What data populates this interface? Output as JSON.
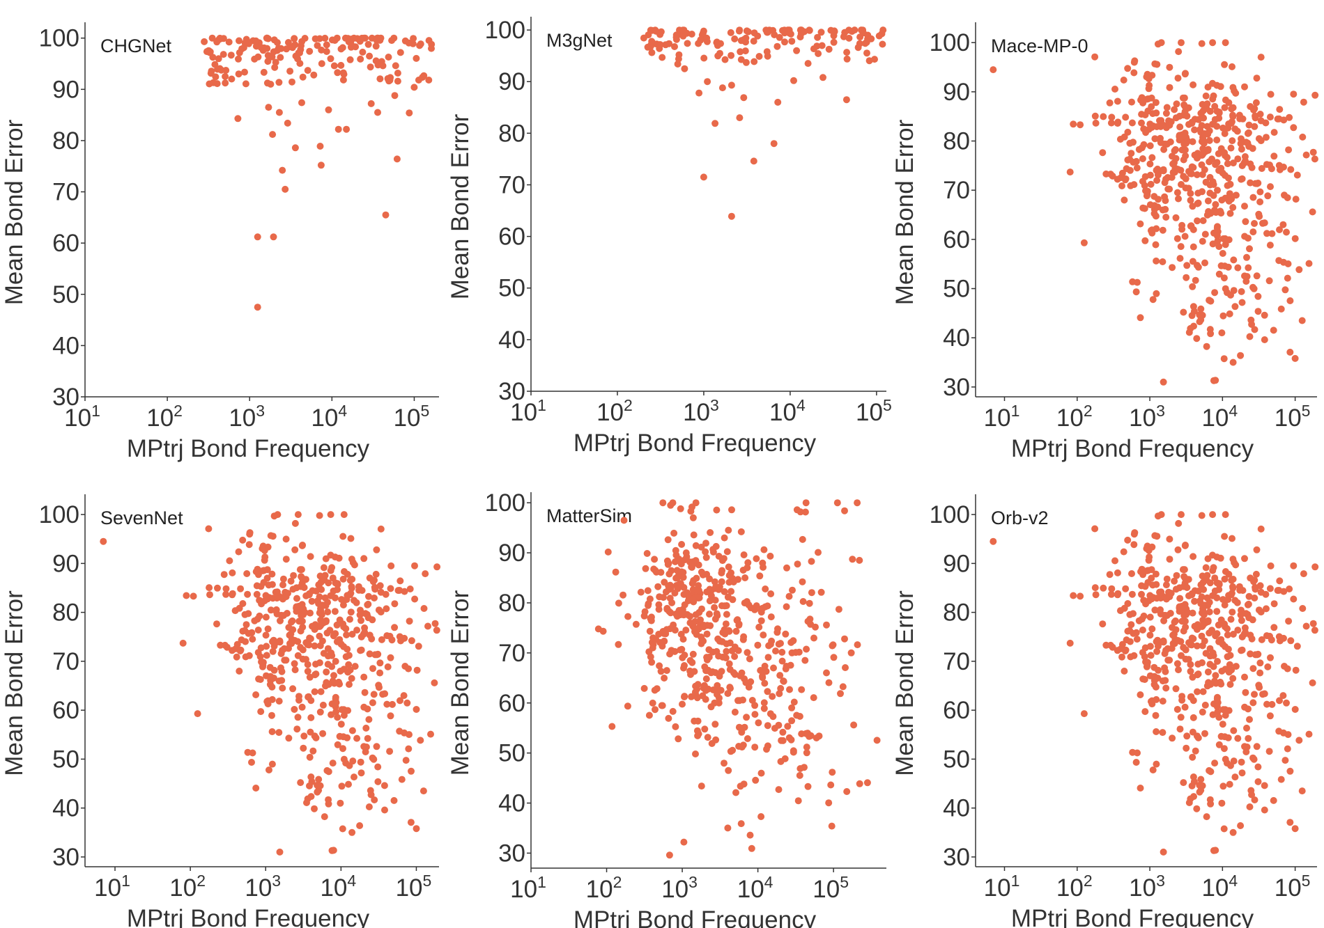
{
  "figure": {
    "point_color": "#e8694a",
    "xlabel": "MPtrj Bond Frequency",
    "ylabel": "Mean Bond Error"
  },
  "chart_data": [
    {
      "type": "scatter",
      "title": "CHGNet",
      "xlabel": "MPtrj Bond Frequency",
      "ylabel": "Mean Bond Error",
      "xscale": "log",
      "xlim": [
        10,
        200000
      ],
      "ylim": [
        30,
        102
      ],
      "yticks": [
        30,
        40,
        50,
        60,
        70,
        80,
        90,
        100
      ],
      "xtick_exponents": [
        1,
        2,
        3,
        4,
        5
      ],
      "grid": false,
      "seed": 11,
      "points": [
        [
          1250,
          61.2
        ],
        [
          1950,
          61.2
        ],
        [
          1250,
          47.5
        ],
        [
          45000,
          65.5
        ],
        [
          2700,
          70.5
        ],
        [
          2500,
          74.2
        ],
        [
          62000,
          76.4
        ],
        [
          3600,
          78.6
        ],
        [
          7200,
          78.9
        ],
        [
          7400,
          75.2
        ],
        [
          720,
          84.3
        ],
        [
          2900,
          83.4
        ],
        [
          1900,
          81.2
        ],
        [
          1700,
          86.5
        ],
        [
          2300,
          85.5
        ],
        [
          4300,
          87.4
        ],
        [
          30000,
          87.2
        ],
        [
          36000,
          85.5
        ],
        [
          58000,
          88.8
        ],
        [
          100000,
          90.4
        ],
        [
          87000,
          85.4
        ],
        [
          12000,
          82.2
        ],
        [
          15000,
          82.2
        ],
        [
          9100,
          86.0
        ],
        [
          1800,
          91.0
        ]
      ],
      "cluster": {
        "n": 170,
        "xmin": 280,
        "xmax": 170000,
        "ymin": 91,
        "ymax": 100,
        "skew": 0.45
      }
    },
    {
      "type": "scatter",
      "title": "M3gNet",
      "xlabel": "MPtrj Bond Frequency",
      "ylabel": "Mean Bond Error",
      "xscale": "log",
      "xlim": [
        10,
        130000
      ],
      "ylim": [
        30,
        101.5
      ],
      "yticks": [
        30,
        40,
        50,
        60,
        70,
        80,
        90,
        100
      ],
      "xtick_exponents": [
        1,
        2,
        3,
        4,
        5
      ],
      "grid": false,
      "seed": 23,
      "points": [
        [
          2100,
          63.9
        ],
        [
          1000,
          71.5
        ],
        [
          3800,
          74.6
        ],
        [
          6500,
          78.0
        ],
        [
          1350,
          81.9
        ],
        [
          2600,
          83.0
        ],
        [
          7200,
          86.0
        ],
        [
          45000,
          86.5
        ],
        [
          2900,
          86.9
        ],
        [
          880,
          87.8
        ],
        [
          1650,
          88.8
        ],
        [
          1100,
          90.0
        ],
        [
          11000,
          90.2
        ],
        [
          24000,
          90.8
        ],
        [
          2100,
          89.3
        ],
        [
          500,
          93.4
        ],
        [
          600,
          92.5
        ],
        [
          3100,
          93.7
        ]
      ],
      "cluster": {
        "n": 140,
        "xmin": 190,
        "xmax": 120000,
        "ymin": 93.5,
        "ymax": 100,
        "skew": 0.35
      }
    },
    {
      "type": "scatter",
      "title": "Mace-MP-0",
      "xlabel": "MPtrj Bond Frequency",
      "ylabel": "Mean Bond Error",
      "xscale": "log",
      "xlim": [
        4,
        200000
      ],
      "ylim": [
        28,
        103
      ],
      "yticks": [
        30,
        40,
        50,
        60,
        70,
        80,
        90,
        100
      ],
      "xtick_exponents": [
        1,
        2,
        3,
        4,
        5
      ],
      "grid": false,
      "seed": 37,
      "points": [
        [
          7,
          94.5
        ],
        [
          80,
          73.7
        ],
        [
          110,
          83.3
        ],
        [
          125,
          59.3
        ],
        [
          175,
          97.1
        ],
        [
          7600,
          31.3
        ],
        [
          14000,
          35.0
        ],
        [
          100000,
          35.8
        ],
        [
          9800,
          41.0
        ],
        [
          38000,
          39.6
        ],
        [
          125000,
          43.5
        ],
        [
          2900,
          45.2
        ],
        [
          155000,
          55.1
        ],
        [
          188000,
          89.3
        ],
        [
          2700,
          100.0
        ],
        [
          7300,
          100.0
        ],
        [
          11000,
          100.0
        ],
        [
          5200,
          99.8
        ],
        [
          1300,
          99.7
        ]
      ],
      "clouds": [
        {
          "n": 260,
          "lxc": 3.25,
          "lxs": 0.42,
          "yc": 80,
          "ys": 8.5
        },
        {
          "n": 130,
          "lxc": 3.9,
          "lxs": 0.5,
          "yc": 65,
          "ys": 12
        },
        {
          "n": 90,
          "lxc": 4.45,
          "lxs": 0.45,
          "yc": 82,
          "ys": 8
        },
        {
          "n": 60,
          "lxc": 4.2,
          "lxs": 0.45,
          "yc": 52,
          "ys": 9
        }
      ]
    },
    {
      "type": "scatter",
      "title": "SevenNet",
      "xlabel": "MPtrj Bond Frequency",
      "ylabel": "Mean Bond Error",
      "xscale": "log",
      "xlim": [
        4,
        200000
      ],
      "ylim": [
        28,
        103
      ],
      "yticks": [
        30,
        40,
        50,
        60,
        70,
        80,
        90,
        100
      ],
      "xtick_exponents": [
        1,
        2,
        3,
        4,
        5
      ],
      "grid": false,
      "seed": 37,
      "points": [
        [
          7,
          94.5
        ],
        [
          80,
          73.7
        ],
        [
          110,
          83.3
        ],
        [
          125,
          59.3
        ],
        [
          175,
          97.1
        ],
        [
          7600,
          31.3
        ],
        [
          14000,
          35.0
        ],
        [
          100000,
          35.8
        ],
        [
          9800,
          41.0
        ],
        [
          38000,
          39.6
        ],
        [
          125000,
          43.5
        ],
        [
          2900,
          45.2
        ],
        [
          155000,
          55.1
        ],
        [
          188000,
          89.3
        ],
        [
          2700,
          100.0
        ],
        [
          7300,
          100.0
        ],
        [
          11000,
          100.0
        ],
        [
          5200,
          99.8
        ],
        [
          1300,
          99.7
        ]
      ],
      "clouds": [
        {
          "n": 260,
          "lxc": 3.25,
          "lxs": 0.42,
          "yc": 80,
          "ys": 8.5
        },
        {
          "n": 130,
          "lxc": 3.9,
          "lxs": 0.5,
          "yc": 65,
          "ys": 12
        },
        {
          "n": 90,
          "lxc": 4.45,
          "lxs": 0.45,
          "yc": 82,
          "ys": 8
        },
        {
          "n": 60,
          "lxc": 4.2,
          "lxs": 0.45,
          "yc": 52,
          "ys": 9
        }
      ]
    },
    {
      "type": "scatter",
      "title": "MatterSim",
      "xlabel": "MPtrj Bond Frequency",
      "ylabel": "Mean Bond Error",
      "xscale": "log",
      "xlim": [
        10,
        500000
      ],
      "ylim": [
        27,
        101
      ],
      "yticks": [
        30,
        40,
        50,
        60,
        70,
        80,
        90,
        100
      ],
      "xtick_exponents": [
        1,
        2,
        3,
        4,
        5
      ],
      "grid": false,
      "seed": 53,
      "points": [
        [
          170,
          96.5
        ],
        [
          78,
          74.8
        ],
        [
          118,
          55.3
        ],
        [
          680,
          29.6
        ],
        [
          1050,
          32.2
        ],
        [
          7900,
          33.6
        ],
        [
          95000,
          35.4
        ],
        [
          11000,
          37.3
        ],
        [
          1800,
          43.4
        ],
        [
          150000,
          42.3
        ],
        [
          140000,
          72.8
        ],
        [
          185000,
          55.6
        ],
        [
          220000,
          88.5
        ],
        [
          140000,
          98.4
        ],
        [
          700,
          99.5
        ],
        [
          950,
          98.8
        ],
        [
          1400,
          97.0
        ],
        [
          1300,
          98.3
        ],
        [
          4500,
          98.6
        ],
        [
          33000,
          98.6
        ]
      ],
      "clouds": [
        {
          "n": 250,
          "lxc": 3.15,
          "lxs": 0.45,
          "yc": 79,
          "ys": 9
        },
        {
          "n": 140,
          "lxc": 3.6,
          "lxs": 0.55,
          "yc": 64,
          "ys": 11
        },
        {
          "n": 90,
          "lxc": 4.3,
          "lxs": 0.55,
          "yc": 74,
          "ys": 12
        },
        {
          "n": 45,
          "lxc": 4.6,
          "lxs": 0.35,
          "yc": 52,
          "ys": 9
        }
      ]
    },
    {
      "type": "scatter",
      "title": "Orb-v2",
      "xlabel": "MPtrj Bond Frequency",
      "ylabel": "Mean Bond Error",
      "xscale": "log",
      "xlim": [
        4,
        200000
      ],
      "ylim": [
        28,
        103
      ],
      "yticks": [
        30,
        40,
        50,
        60,
        70,
        80,
        90,
        100
      ],
      "xtick_exponents": [
        1,
        2,
        3,
        4,
        5
      ],
      "grid": false,
      "seed": 37,
      "points": [
        [
          7,
          94.5
        ],
        [
          80,
          73.7
        ],
        [
          110,
          83.3
        ],
        [
          125,
          59.3
        ],
        [
          175,
          97.1
        ],
        [
          7600,
          31.3
        ],
        [
          14000,
          35.0
        ],
        [
          100000,
          35.8
        ],
        [
          9800,
          41.0
        ],
        [
          38000,
          39.6
        ],
        [
          125000,
          43.5
        ],
        [
          2900,
          45.2
        ],
        [
          155000,
          55.1
        ],
        [
          188000,
          89.3
        ],
        [
          2700,
          100.0
        ],
        [
          7300,
          100.0
        ],
        [
          11000,
          100.0
        ],
        [
          5200,
          99.8
        ],
        [
          1300,
          99.7
        ]
      ],
      "clouds": [
        {
          "n": 260,
          "lxc": 3.25,
          "lxs": 0.42,
          "yc": 80,
          "ys": 8.5
        },
        {
          "n": 130,
          "lxc": 3.9,
          "lxs": 0.5,
          "yc": 65,
          "ys": 12
        },
        {
          "n": 90,
          "lxc": 4.45,
          "lxs": 0.45,
          "yc": 82,
          "ys": 8
        },
        {
          "n": 60,
          "lxc": 4.2,
          "lxs": 0.45,
          "yc": 52,
          "ys": 9
        }
      ]
    }
  ]
}
